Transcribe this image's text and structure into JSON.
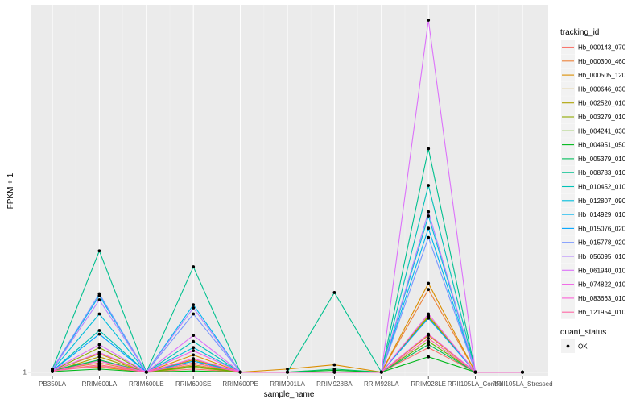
{
  "chart_data": {
    "type": "line",
    "xlabel": "sample_name",
    "ylabel": "FPKM + 1",
    "categories": [
      "PB350LA",
      "RRIM600LA",
      "RRIM600LE",
      "RRIM600SE",
      "RRIM600PE",
      "RRIM901LA",
      "RRIM928BA",
      "RRIM928LA",
      "RRIM928LE",
      "RRII105LA_Control",
      "RRII105LA_Stressed"
    ],
    "y_ticks": [
      "1"
    ],
    "y_tick_values": [
      1
    ],
    "ylim": [
      0.93,
      7.0
    ],
    "grid": true,
    "legend_position": "right",
    "legend_title": "tracking_id",
    "shape_legend": {
      "title": "quant_status",
      "entries": [
        "OK"
      ]
    },
    "series": [
      {
        "name": "Hb_000143_070",
        "color": "#F8766D",
        "values": [
          1.02,
          1.12,
          1,
          1.05,
          1,
          1,
          1,
          1,
          1.4,
          1,
          1
        ]
      },
      {
        "name": "Hb_000300_460",
        "color": "#EC8239",
        "values": [
          1.03,
          1.15,
          1,
          1.12,
          1,
          1,
          1,
          1,
          2.35,
          1,
          1
        ]
      },
      {
        "name": "Hb_000505_120",
        "color": "#DB8E00",
        "values": [
          1.05,
          1.08,
          1,
          1.28,
          1,
          1.05,
          1.12,
          1,
          2.45,
          1,
          1
        ]
      },
      {
        "name": "Hb_000646_030",
        "color": "#C79800",
        "values": [
          1.02,
          1.3,
          1,
          1.2,
          1,
          1,
          1,
          1,
          1.6,
          1,
          1
        ]
      },
      {
        "name": "Hb_002520_010",
        "color": "#AEA200",
        "values": [
          1.01,
          1.25,
          1,
          1.15,
          1,
          1,
          1,
          1,
          1.92,
          1,
          1
        ]
      },
      {
        "name": "Hb_003279_010",
        "color": "#8FAA00",
        "values": [
          1.02,
          1.4,
          1,
          1.08,
          1,
          1,
          1,
          1,
          1.9,
          1,
          1
        ]
      },
      {
        "name": "Hb_004241_030",
        "color": "#64B200",
        "values": [
          1.01,
          1.2,
          1,
          1.1,
          1,
          1,
          1,
          1,
          1.5,
          1,
          1
        ]
      },
      {
        "name": "Hb_004951_050",
        "color": "#00B81B",
        "values": [
          1.01,
          1.05,
          1,
          1.02,
          1,
          1,
          1.03,
          1,
          1.25,
          1,
          1
        ]
      },
      {
        "name": "Hb_005379_010",
        "color": "#00BD5C",
        "values": [
          1.03,
          1.2,
          1,
          1.18,
          1,
          1,
          1.05,
          1,
          1.45,
          1,
          1
        ]
      },
      {
        "name": "Hb_008783_010",
        "color": "#00C08E",
        "values": [
          1.05,
          2.98,
          1,
          2.72,
          1,
          1,
          2.3,
          1,
          4.65,
          1,
          1
        ]
      },
      {
        "name": "Hb_010452_010",
        "color": "#00C1B7",
        "values": [
          1.02,
          1.68,
          1,
          1.5,
          1,
          1,
          1,
          1,
          4.05,
          1,
          1
        ]
      },
      {
        "name": "Hb_012807_090",
        "color": "#00BDDC",
        "values": [
          1.03,
          1.95,
          1,
          1.4,
          1,
          1,
          1,
          1,
          3.55,
          1,
          1
        ]
      },
      {
        "name": "Hb_014929_010",
        "color": "#00B4EF",
        "values": [
          1.04,
          2.25,
          1,
          2.1,
          1,
          1,
          1,
          1,
          3.35,
          1,
          1
        ]
      },
      {
        "name": "Hb_015076_020",
        "color": "#00A5FF",
        "values": [
          1.02,
          1.62,
          1,
          1.18,
          1,
          1,
          1,
          1,
          1.88,
          1,
          1
        ]
      },
      {
        "name": "Hb_015778_020",
        "color": "#7997FF",
        "values": [
          1.05,
          2.28,
          1,
          1.95,
          1,
          1,
          1,
          1,
          3.2,
          1,
          1
        ]
      },
      {
        "name": "Hb_056095_010",
        "color": "#B385FF",
        "values": [
          1.04,
          2.18,
          1,
          2.05,
          1,
          1,
          1,
          1,
          3.62,
          1,
          1
        ]
      },
      {
        "name": "Hb_061940_010",
        "color": "#DC71FA",
        "values": [
          1.03,
          1.45,
          1,
          1.6,
          1,
          1,
          1,
          1,
          6.75,
          1,
          1
        ]
      },
      {
        "name": "Hb_074822_010",
        "color": "#F065E6",
        "values": [
          1.02,
          1.32,
          1,
          1.35,
          1,
          1,
          1,
          1,
          1.95,
          1,
          1
        ]
      },
      {
        "name": "Hb_083663_010",
        "color": "#FB61D7",
        "values": [
          1.01,
          1.18,
          1,
          1.22,
          1,
          1,
          1,
          1,
          1.62,
          1,
          1
        ]
      },
      {
        "name": "Hb_121954_010",
        "color": "#FF66A4",
        "values": [
          1.02,
          1.1,
          1,
          1.15,
          1,
          1,
          1,
          1,
          1.55,
          1,
          1
        ]
      }
    ]
  }
}
